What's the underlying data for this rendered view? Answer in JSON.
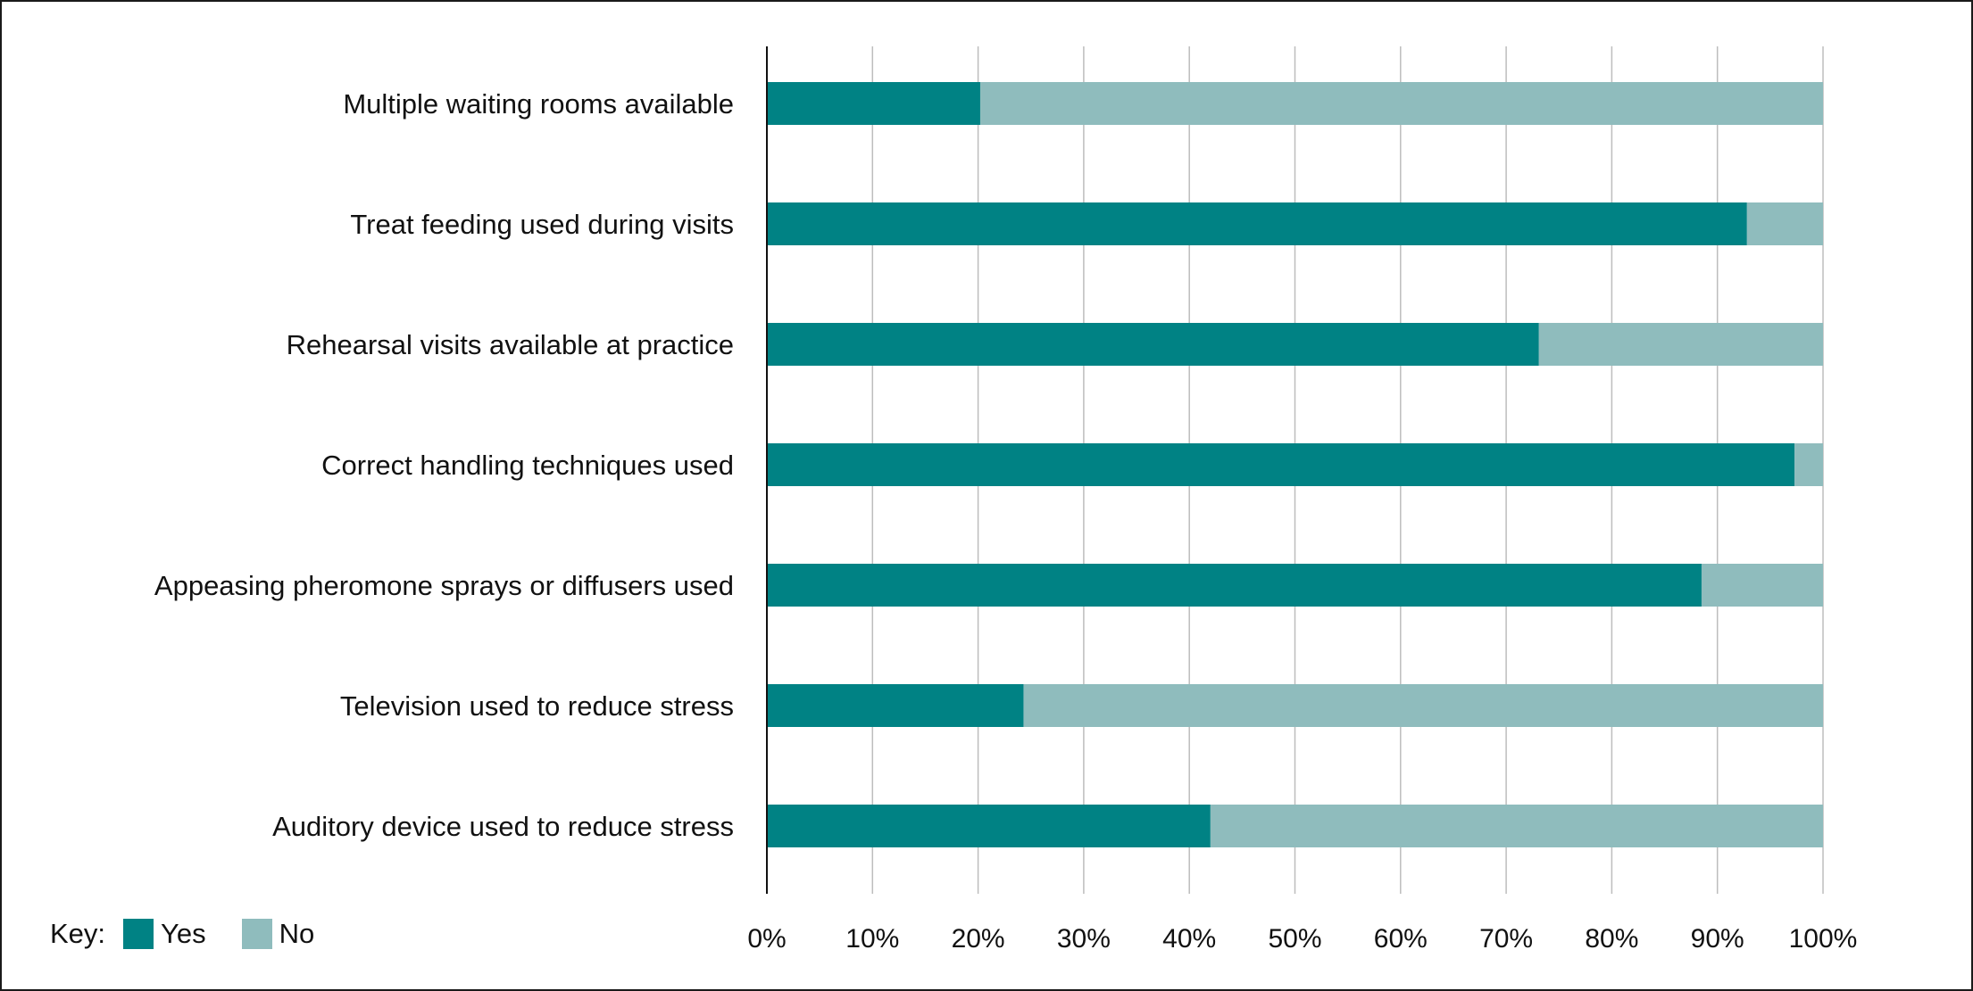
{
  "colors": {
    "yes": "#008284",
    "no": "#8fbcbd",
    "grid": "#bdbdbd",
    "axis": "#111111"
  },
  "legend": {
    "key_label": "Key:",
    "yes_label": "Yes",
    "no_label": "No"
  },
  "chart_data": {
    "type": "bar",
    "orientation": "horizontal",
    "stacked": true,
    "categories": [
      "Multiple waiting rooms available",
      "Treat feeding used during visits",
      "Rehearsal visits available at practice",
      "Correct handling techniques used",
      "Appeasing pheromone sprays or diffusers used",
      "Television used to reduce stress",
      "Auditory device used to reduce stress"
    ],
    "series": [
      {
        "name": "Yes",
        "values": [
          20.2,
          92.8,
          73.1,
          97.3,
          88.5,
          24.3,
          42.0
        ]
      },
      {
        "name": "No",
        "values": [
          79.8,
          7.2,
          26.9,
          2.7,
          11.5,
          75.7,
          58.0
        ]
      }
    ],
    "x_ticks": [
      "0%",
      "10%",
      "20%",
      "30%",
      "40%",
      "50%",
      "60%",
      "70%",
      "80%",
      "90%",
      "100%"
    ],
    "xlim": [
      0,
      100
    ],
    "grid": "vertical",
    "legend_position": "bottom-left"
  }
}
